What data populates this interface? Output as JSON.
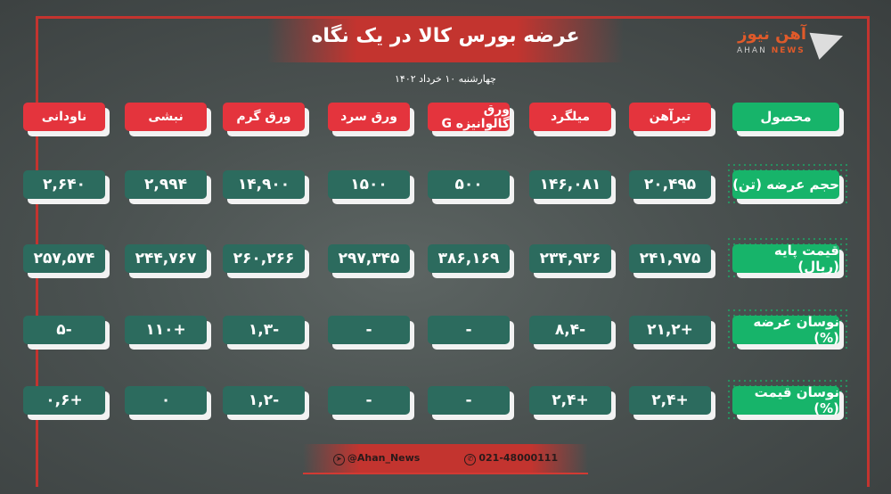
{
  "header": {
    "title": "عرضه بورس کالا در یک نگاه",
    "date": "چهارشنبه ۱۰ خرداد ۱۴۰۲",
    "logo": {
      "fa": "آهن نیوز",
      "en_1": "AHAN",
      "en_2": "NEWS"
    }
  },
  "table": {
    "corner": "محصول",
    "products": [
      "تیرآهن",
      "میلگرد",
      "ورق گالوانیزه G",
      "ورق سرد",
      "ورق گرم",
      "نبشی",
      "ناودانی"
    ],
    "rows": [
      {
        "label": "حجم عرضه (تن)",
        "values": [
          "۲۰,۴۹۵",
          "۱۴۶,۰۸۱",
          "۵۰۰",
          "۱۵۰۰",
          "۱۴,۹۰۰",
          "۲,۹۹۴",
          "۲,۶۴۰"
        ]
      },
      {
        "label": "قیمت پایه (ریال)",
        "values": [
          "۲۴۱,۹۷۵",
          "۲۳۴,۹۳۶",
          "۳۸۶,۱۶۹",
          "۲۹۷,۳۴۵",
          "۲۶۰,۲۶۶",
          "۲۴۴,۷۶۷",
          "۲۵۷,۵۷۴"
        ]
      },
      {
        "label": "نوسان عرضه (%)",
        "values": [
          "+۲۱,۲",
          "-۸,۴",
          "-",
          "-",
          "-۱,۳",
          "+۱۱۰",
          "-۵"
        ]
      },
      {
        "label": "نوسان قیمت (%)",
        "values": [
          "+۲,۴",
          "+۲,۴",
          "-",
          "-",
          "-۱,۲",
          "۰",
          "+۰,۶"
        ]
      }
    ]
  },
  "footer": {
    "telegram": "@Ahan_News",
    "phone": "021-48000111"
  },
  "colors": {
    "accent": "#c3342f",
    "header_cell": "#e4343d",
    "label_cell": "#17b46a",
    "value_cell": "#2c6b5e"
  }
}
